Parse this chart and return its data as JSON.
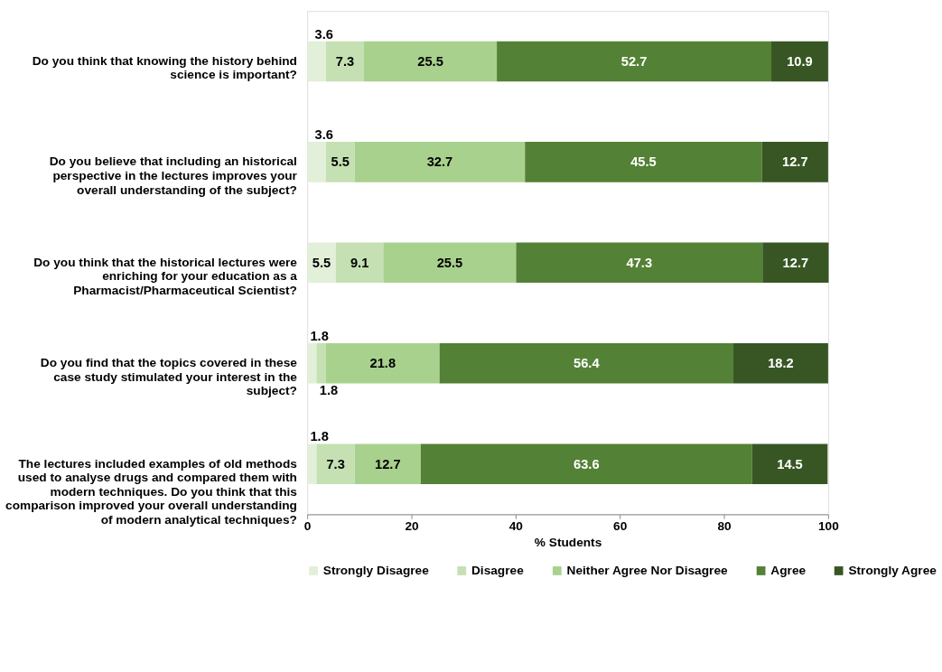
{
  "chart_data": {
    "type": "bar",
    "orientation": "horizontal",
    "stacked": true,
    "data_labels": true,
    "xlabel": "% Students",
    "xlim": [
      0,
      100
    ],
    "xticks": [
      0,
      20,
      40,
      60,
      80,
      100
    ],
    "grid": false,
    "legend": "bottom",
    "categories": [
      "Do you think that knowing the history behind science is important?",
      "Do you believe that including an historical perspective in the lectures improves your overall understanding of the subject?",
      "Do you think that the historical lectures were enriching for your education as a Pharmacist/Pharmaceutical Scientist?",
      "Do you find that the topics covered in these case study stimulated your interest in the subject?",
      "The lectures included examples of old methods used to analyse drugs and compared them with modern techniques. Do you think that this comparison improved your overall understanding of modern analytical techniques?"
    ],
    "series": [
      {
        "name": "Strongly Disagree",
        "color": "#e2efd9",
        "values": [
          3.6,
          3.6,
          5.5,
          1.8,
          1.8
        ]
      },
      {
        "name": "Disagree",
        "color": "#c5e0b3",
        "values": [
          7.3,
          5.5,
          9.1,
          1.8,
          7.3
        ]
      },
      {
        "name": "Neither Agree Nor Disagree",
        "color": "#a9d18e",
        "values": [
          25.5,
          32.7,
          25.5,
          21.8,
          12.7
        ]
      },
      {
        "name": "Agree",
        "color": "#538135",
        "values": [
          52.7,
          45.5,
          47.3,
          56.4,
          63.6
        ]
      },
      {
        "name": "Strongly Agree",
        "color": "#375623",
        "values": [
          10.9,
          12.7,
          12.7,
          18.2,
          14.5
        ]
      }
    ]
  }
}
